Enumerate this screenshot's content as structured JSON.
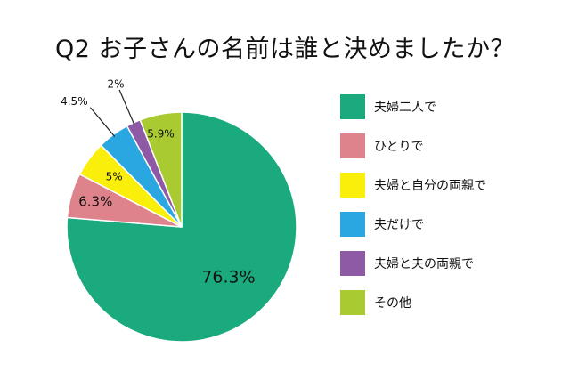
{
  "chart_data": {
    "type": "pie",
    "title": "Q2 お子さんの名前は誰と決めましたか？",
    "slices": [
      {
        "label": "夫婦二人で",
        "value": 76.3,
        "value_label": "76.3%",
        "color": "#1aaa7e"
      },
      {
        "label": "ひとりで",
        "value": 6.3,
        "value_label": "6.3%",
        "color": "#de838c"
      },
      {
        "label": "夫婦と自分の両親で",
        "value": 5,
        "value_label": "5%",
        "color": "#f9ef0a"
      },
      {
        "label": "夫だけで",
        "value": 4.5,
        "value_label": "4.5%",
        "color": "#2aa7e0"
      },
      {
        "label": "夫婦と夫の両親で",
        "value": 2,
        "value_label": "2%",
        "color": "#8e5aa6"
      },
      {
        "label": "その他",
        "value": 5.9,
        "value_label": "5.9%",
        "color": "#a9cb31"
      }
    ],
    "legend_position": "right"
  }
}
